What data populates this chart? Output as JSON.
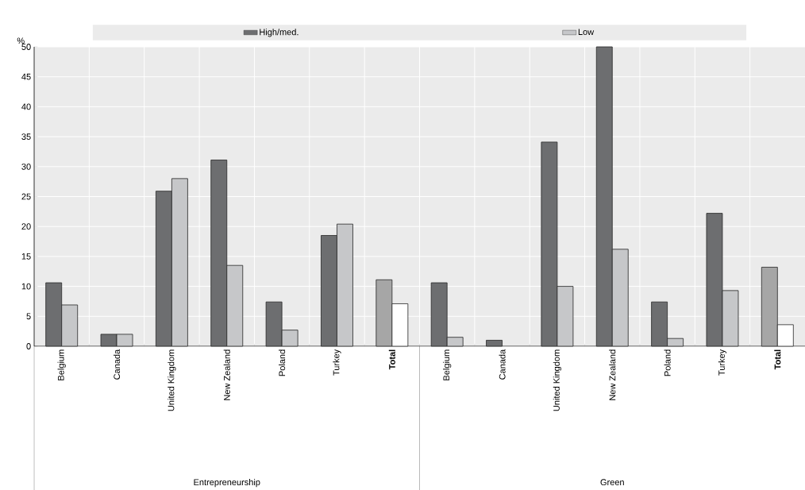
{
  "chart_data": {
    "type": "bar",
    "ylabel": "%",
    "categories": [
      "Belgium",
      "Canada",
      "United Kingdom",
      "New Zealand",
      "Poland",
      "Turkey",
      "**Total**",
      "Belgium",
      "Canada",
      "United Kingdom",
      "New Zealand",
      "Poland",
      "Turkey",
      "**Total**"
    ],
    "series": [
      {
        "name": "High/med.",
        "color": "#6d6e70",
        "colors": [
          "#6d6e70",
          "#6d6e70",
          "#6d6e70",
          "#6d6e70",
          "#6d6e70",
          "#6d6e70",
          "#a6a6a6",
          "#6d6e70",
          "#6d6e70",
          "#6d6e70",
          "#6d6e70",
          "#6d6e70",
          "#6d6e70",
          "#a6a6a6"
        ],
        "values": [
          10.6,
          2.0,
          25.9,
          31.1,
          7.4,
          18.5,
          11.1,
          10.6,
          1.0,
          34.1,
          50,
          7.4,
          22.2,
          13.2
        ]
      },
      {
        "name": "Low",
        "color": "#c6c7c9",
        "colors": [
          "#c6c7c9",
          "#c6c7c9",
          "#c6c7c9",
          "#c6c7c9",
          "#c6c7c9",
          "#c6c7c9",
          "#ffffff",
          "#c6c7c9",
          "#c6c7c9",
          "#c6c7c9",
          "#c6c7c9",
          "#c6c7c9",
          "#c6c7c9",
          "#ffffff"
        ],
        "values": [
          6.9,
          2.0,
          28.0,
          13.5,
          2.7,
          20.4,
          7.1,
          1.5,
          null,
          10.0,
          16.2,
          1.3,
          9.3,
          3.6
        ]
      }
    ],
    "ylim": [
      0,
      50
    ],
    "yticks": [
      0,
      5,
      10,
      15,
      20,
      25,
      30,
      35,
      40,
      45,
      50
    ],
    "grid": true,
    "legend": "top",
    "annotations": [
      "Entrepreneurship",
      "Green"
    ]
  }
}
